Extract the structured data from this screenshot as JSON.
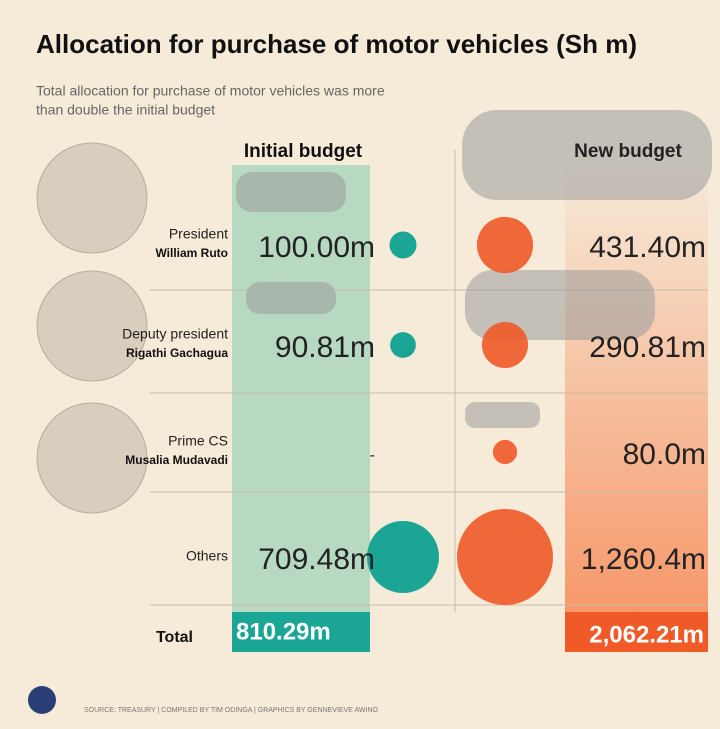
{
  "chart_data": {
    "type": "bubble",
    "title": "Allocation for purchase of motor vehicles (Sh m)",
    "subtitle": [
      "Total allocation for purchase of motor vehicles was more",
      "than double the initial budget"
    ],
    "categories": [
      "President",
      "Deputy president",
      "Prime CS",
      "Others"
    ],
    "names": [
      "William Ruto",
      "Rigathi Gachagua",
      "Musalia Mudavadi",
      null
    ],
    "series": [
      {
        "name": "Initial budget",
        "color": "#1aa595",
        "values": [
          100.0,
          90.81,
          null,
          709.48
        ],
        "value_labels": [
          "100.00m",
          "90.81m",
          "-",
          "709.48m"
        ]
      },
      {
        "name": "New budget",
        "color": "#f05a28",
        "values": [
          431.4,
          290.81,
          80.0,
          1260.4
        ],
        "value_labels": [
          "431.40m",
          "290.81m",
          "80.0m",
          "1,260.4m"
        ]
      }
    ],
    "total_label": "Total",
    "totals": [
      810.29,
      2062.21
    ],
    "total_labels": [
      "810.29m",
      "2,062.21m"
    ],
    "source": "SOURCE: TREASURY | COMPILED BY TIM ODINGA | GRAPHICS BY GENNEVIEVE AWINO"
  }
}
